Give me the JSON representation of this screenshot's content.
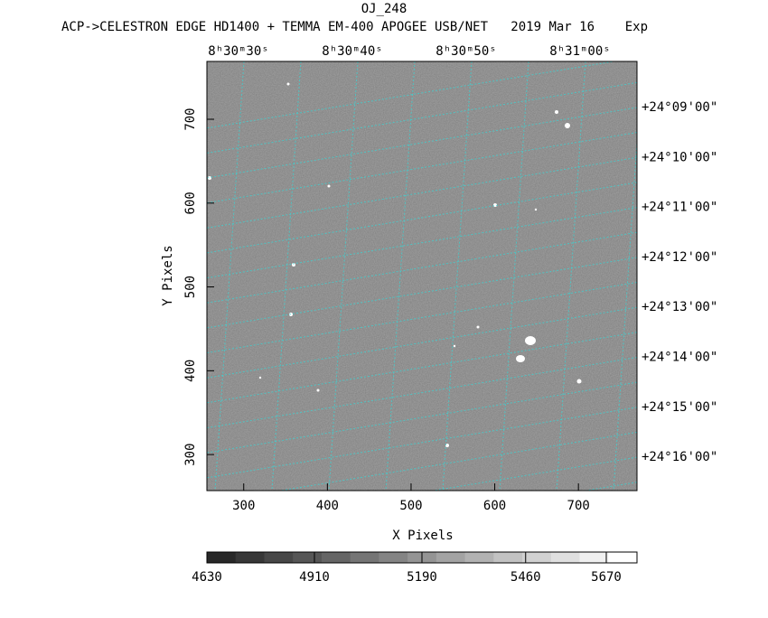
{
  "chart_data": {
    "type": "image",
    "title": "OJ_248",
    "subtitle": "ACP->CELESTRON EDGE HD1400 + TEMMA EM-400 APOGEE USB/NET   2019 Mar 16    Exp",
    "x_label": "X Pixels",
    "y_label": "Y Pixels",
    "xlim": [
      256,
      770
    ],
    "ylim": [
      257,
      769
    ],
    "xticks": [
      300,
      400,
      500,
      600,
      700
    ],
    "yticks": [
      300,
      400,
      500,
      600,
      700
    ],
    "ra_labels": [
      "8ʰ30ᵐ30ˢ",
      "8ʰ30ᵐ40ˢ",
      "8ʰ30ᵐ50ˢ",
      "8ʰ31ᵐ00ˢ"
    ],
    "dec_labels": [
      "+24°09'00\"",
      "+24°10'00\"",
      "+24°11'00\"",
      "+24°12'00\"",
      "+24°13'00\"",
      "+24°14'00\"",
      "+24°15'00\"",
      "+24°16'00\""
    ],
    "colorbar": {
      "clim": [
        4630,
        5750
      ],
      "ticks": [
        4630,
        4910,
        5190,
        5460,
        5670
      ]
    }
  }
}
